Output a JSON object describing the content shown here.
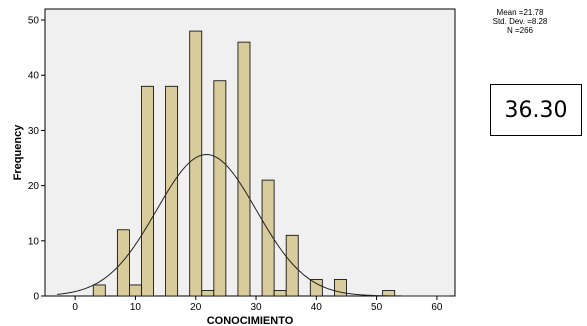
{
  "chart_data": {
    "type": "bar",
    "subtype": "histogram",
    "xlabel": "CONOCIMIENTO",
    "ylabel": "Frequency",
    "xlim": [
      -5,
      63
    ],
    "ylim": [
      0,
      52
    ],
    "xticks": [
      0,
      10,
      20,
      30,
      40,
      50,
      60
    ],
    "yticks": [
      0,
      10,
      20,
      30,
      40,
      50
    ],
    "grid": false,
    "bin_width": 2,
    "bars": [
      {
        "x": 4,
        "value": 2
      },
      {
        "x": 8,
        "value": 12
      },
      {
        "x": 10,
        "value": 2
      },
      {
        "x": 12,
        "value": 38
      },
      {
        "x": 16,
        "value": 38
      },
      {
        "x": 20,
        "value": 48
      },
      {
        "x": 22,
        "value": 1
      },
      {
        "x": 24,
        "value": 39
      },
      {
        "x": 28,
        "value": 46
      },
      {
        "x": 32,
        "value": 21
      },
      {
        "x": 34,
        "value": 1
      },
      {
        "x": 36,
        "value": 11
      },
      {
        "x": 40,
        "value": 3
      },
      {
        "x": 44,
        "value": 3
      },
      {
        "x": 52,
        "value": 1
      }
    ],
    "normal_curve": {
      "mean": 21.78,
      "std_dev": 8.28,
      "n": 266
    },
    "bar_color": "#d8cc9c",
    "plot_background": "#f0f0f0"
  },
  "stats": {
    "mean": "Mean =21.78",
    "std_dev": "Std. Dev. =8.28",
    "n": "N =266"
  },
  "value_box": "36.30"
}
